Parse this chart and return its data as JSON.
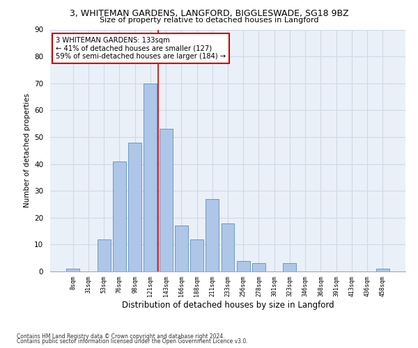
{
  "title1": "3, WHITEMAN GARDENS, LANGFORD, BIGGLESWADE, SG18 9BZ",
  "title2": "Size of property relative to detached houses in Langford",
  "xlabel": "Distribution of detached houses by size in Langford",
  "ylabel": "Number of detached properties",
  "categories": [
    "8sqm",
    "31sqm",
    "53sqm",
    "76sqm",
    "98sqm",
    "121sqm",
    "143sqm",
    "166sqm",
    "188sqm",
    "211sqm",
    "233sqm",
    "256sqm",
    "278sqm",
    "301sqm",
    "323sqm",
    "346sqm",
    "368sqm",
    "391sqm",
    "413sqm",
    "436sqm",
    "458sqm"
  ],
  "values": [
    1,
    0,
    12,
    41,
    48,
    70,
    53,
    17,
    12,
    27,
    18,
    4,
    3,
    0,
    3,
    0,
    0,
    0,
    0,
    0,
    1
  ],
  "bar_color": "#aec6e8",
  "bar_edge_color": "#5a90c0",
  "vline_x": 5.5,
  "vline_color": "#cc0000",
  "ylim": [
    0,
    90
  ],
  "yticks": [
    0,
    10,
    20,
    30,
    40,
    50,
    60,
    70,
    80,
    90
  ],
  "annotation_title": "3 WHITEMAN GARDENS: 133sqm",
  "annotation_line1": "← 41% of detached houses are smaller (127)",
  "annotation_line2": "59% of semi-detached houses are larger (184) →",
  "annotation_box_color": "#cc0000",
  "annotation_box_fill": "#ffffff",
  "grid_color": "#d0d8e8",
  "bg_color": "#eaf0f8",
  "footer1": "Contains HM Land Registry data © Crown copyright and database right 2024.",
  "footer2": "Contains public sector information licensed under the Open Government Licence v3.0."
}
